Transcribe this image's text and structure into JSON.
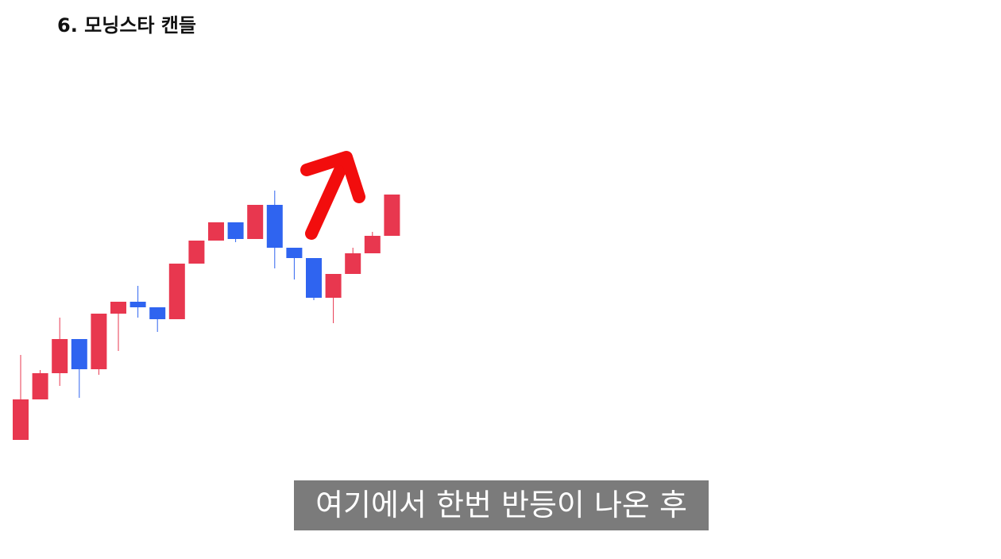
{
  "chart_data": {
    "type": "candlestick",
    "title": "6. 모닝스타 캔들",
    "caption": "여기에서 한번 반등이 나온 후",
    "open": [
      46,
      97,
      130,
      173,
      135,
      205,
      220,
      213,
      198,
      268,
      297,
      320,
      299,
      342,
      288,
      275,
      225,
      255,
      281,
      303
    ],
    "high": [
      153,
      134,
      200,
      173,
      205,
      220,
      240,
      213,
      268,
      297,
      320,
      320,
      342,
      360,
      288,
      275,
      255,
      288,
      308,
      355
    ],
    "low": [
      46,
      97,
      114,
      99,
      128,
      158,
      200,
      182,
      198,
      268,
      297,
      295,
      299,
      262,
      248,
      222,
      193,
      255,
      281,
      303
    ],
    "close": [
      97,
      130,
      173,
      135,
      205,
      220,
      213,
      198,
      268,
      297,
      320,
      299,
      342,
      288,
      275,
      225,
      255,
      281,
      303,
      355
    ],
    "up_color": "#e8374f",
    "down_color": "#2f64f0",
    "ylim": [
      0,
      600
    ]
  }
}
